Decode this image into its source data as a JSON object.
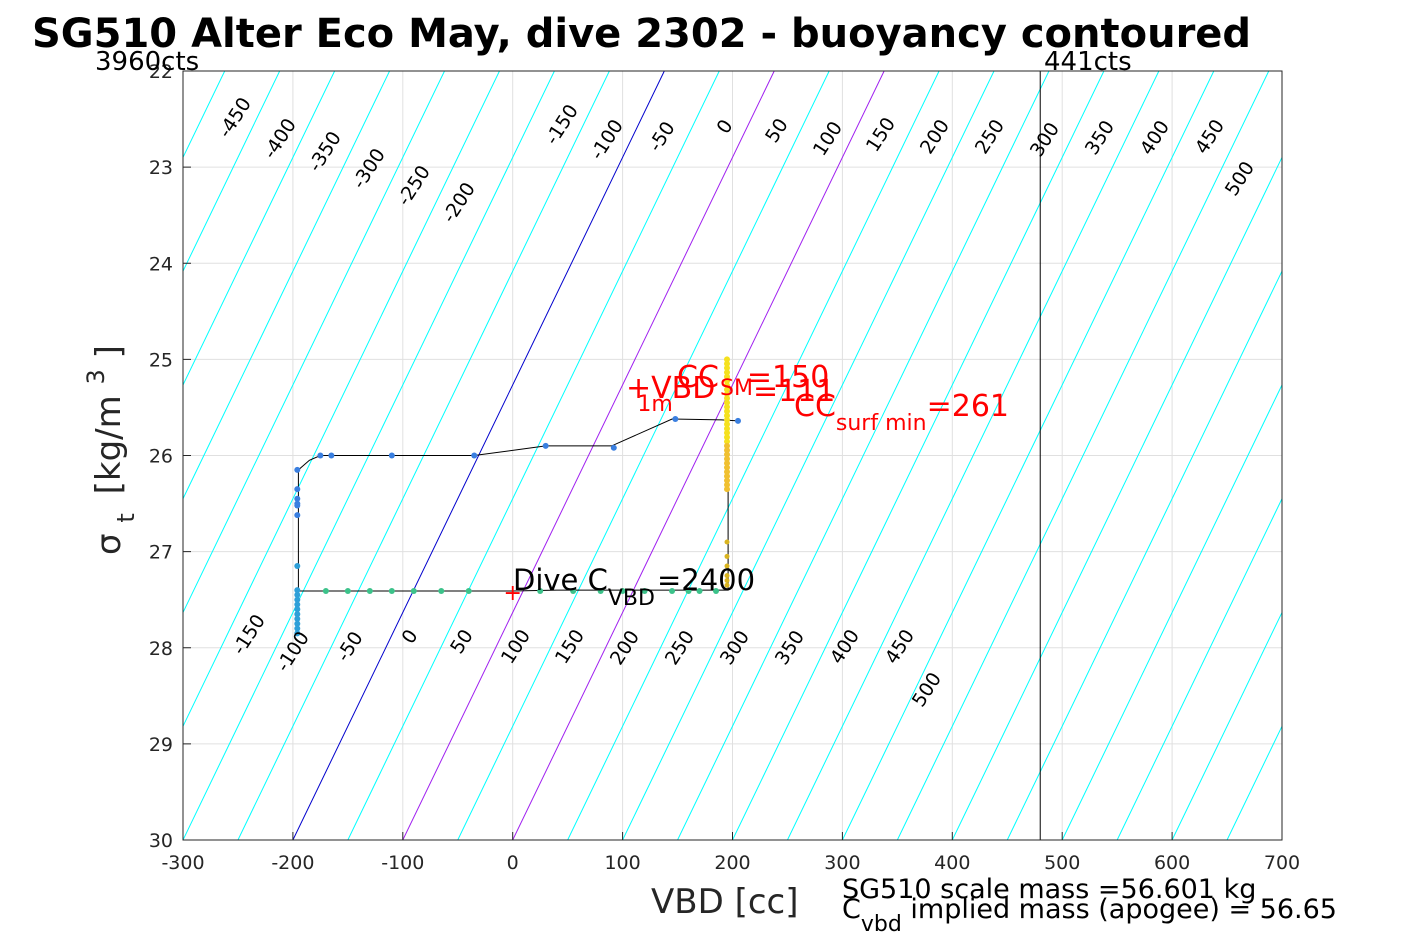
{
  "chart_data": {
    "type": "scatter",
    "title": "SG510 Alter Eco May, dive 2302 - buoyancy contoured",
    "xlabel": "VBD [cc]",
    "ylabel_symbol": "σ",
    "ylabel_sub": "t",
    "ylabel_units": "[kg/m",
    "ylabel_sup": "3",
    "ylabel_close": "]",
    "xlim": [
      -300,
      700
    ],
    "ylim": [
      22,
      30
    ],
    "y_reversed": true,
    "grid": true,
    "x_ticks": [
      "-300",
      "-200",
      "-100",
      "0",
      "100",
      "200",
      "300",
      "400",
      "500",
      "600",
      "700"
    ],
    "y_ticks": [
      "22",
      "23",
      "24",
      "25",
      "26",
      "27",
      "28",
      "29",
      "30"
    ],
    "top_left_label": "3960cts",
    "top_right_label": "441cts",
    "vline_x": 480,
    "colors": {
      "contour": "#00ffff",
      "zero_line": "#0000cd",
      "magenta_lines": "#a020f0",
      "trajectory": "#000000",
      "annotation_red": "#ff0000",
      "dive_points": "#2e9fd8",
      "climb_points": "#3cc28a",
      "surface_points": "#f5e11e"
    },
    "contour_labels_top": [
      "-450",
      "-400",
      "-350",
      "-300",
      "-250",
      "-200",
      "-150",
      "-100",
      "-50",
      "0",
      "50",
      "100",
      "150",
      "200",
      "250",
      "300",
      "350",
      "400",
      "450",
      "500"
    ],
    "contour_labels_bottom": [
      "-150",
      "-100",
      "-50",
      "0",
      "50",
      "100",
      "150",
      "200",
      "250",
      "300",
      "350",
      "400",
      "450",
      "500"
    ],
    "trajectory": {
      "x": [
        196,
        196,
        190,
        185,
        170,
        160,
        120,
        80,
        40,
        0,
        -60,
        -100,
        -150,
        -180,
        -195,
        -195,
        -195,
        -195,
        -185,
        -175,
        -160,
        -110,
        -35,
        30,
        90,
        145,
        190,
        205
      ],
      "y": [
        25.0,
        27.4,
        27.4,
        27.4,
        27.4,
        27.4,
        27.4,
        27.4,
        27.4,
        27.41,
        27.41,
        27.41,
        27.41,
        27.41,
        27.41,
        27.8,
        27.41,
        26.15,
        26.05,
        26.0,
        26.0,
        26.0,
        26.0,
        25.9,
        25.9,
        25.62,
        25.63,
        25.64
      ]
    },
    "annotations": {
      "cc_prefix": "CC",
      "cc_value": "=150",
      "vbd_prefix": "+VBD",
      "vbd_sub": "1m",
      "sm_prefix": "SM",
      "sm_value": "=111",
      "ccsurf_prefix": "CC",
      "ccsurf_sub": "surf min",
      "ccsurf_value": "=261",
      "dive_prefix": "Dive C",
      "dive_sub": "VBD",
      "dive_value": "=2400",
      "scale_mass": "SG510 scale mass =56.601 kg",
      "cvbd_prefix": "C",
      "cvbd_sub": "vbd",
      "cvbd_text": " implied mass (apogee) = 56.65"
    }
  }
}
